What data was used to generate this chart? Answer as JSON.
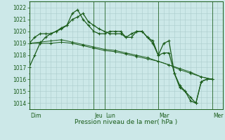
{
  "bg_color": "#cce8e8",
  "grid_color": "#aacccc",
  "line_color": "#1a5c1a",
  "text_color": "#1a5c1a",
  "xlabel": "Pression niveau de la mer( hPa )",
  "ylim": [
    1013.5,
    1022.5
  ],
  "yticks": [
    1014,
    1015,
    1016,
    1017,
    1018,
    1019,
    1020,
    1021,
    1022
  ],
  "xlim": [
    0,
    216
  ],
  "day_positions": [
    0,
    72,
    84,
    144,
    204
  ],
  "day_labels": [
    "Dim",
    "Jeu",
    "Lun",
    "Mar",
    "Mer"
  ],
  "series1_x": [
    0,
    6,
    12,
    18,
    24,
    30,
    36,
    42,
    48,
    54,
    60,
    66,
    72,
    78,
    84,
    90,
    96,
    102,
    108,
    114,
    120,
    126,
    132,
    138,
    144,
    150,
    156,
    162,
    168,
    174,
    180,
    186,
    192,
    198,
    204
  ],
  "series1_y": [
    1017.0,
    1018.0,
    1019.0,
    1019.5,
    1019.8,
    1020.0,
    1020.2,
    1020.5,
    1021.5,
    1021.8,
    1021.0,
    1020.5,
    1020.0,
    1019.8,
    1019.8,
    1020.0,
    1020.0,
    1020.0,
    1019.5,
    1019.5,
    1020.0,
    1020.0,
    1019.5,
    1019.0,
    1018.0,
    1018.2,
    1018.2,
    1016.5,
    1015.3,
    1015.0,
    1014.2,
    1014.0,
    1015.8,
    1016.0,
    1016.0
  ],
  "series2_x": [
    0,
    6,
    12,
    18,
    24,
    30,
    36,
    42,
    48,
    54,
    60,
    66,
    72,
    78,
    84,
    90,
    96,
    102,
    108,
    114,
    120,
    126,
    132,
    138,
    144,
    150,
    156,
    162,
    168,
    174,
    180,
    186,
    192,
    198,
    204
  ],
  "series2_y": [
    1019.0,
    1019.5,
    1019.8,
    1019.8,
    1019.8,
    1020.0,
    1020.3,
    1020.5,
    1021.0,
    1021.2,
    1021.5,
    1020.8,
    1020.5,
    1020.2,
    1020.0,
    1019.8,
    1019.8,
    1019.8,
    1019.5,
    1019.8,
    1020.0,
    1020.0,
    1019.5,
    1019.2,
    1018.0,
    1019.0,
    1019.2,
    1016.5,
    1015.5,
    1015.0,
    1014.5,
    1014.0,
    1015.8,
    1016.0,
    1016.0
  ],
  "series3_x": [
    0,
    12,
    24,
    36,
    48,
    60,
    72,
    84,
    96,
    108,
    120,
    132,
    144,
    156,
    168,
    180,
    192,
    204
  ],
  "series3_y": [
    1019.0,
    1019.0,
    1019.0,
    1019.1,
    1019.0,
    1018.8,
    1018.6,
    1018.4,
    1018.3,
    1018.1,
    1017.9,
    1017.7,
    1017.5,
    1017.2,
    1016.8,
    1016.5,
    1016.2,
    1016.0
  ],
  "series4_x": [
    0,
    12,
    24,
    36,
    48,
    60,
    72,
    84,
    96,
    108,
    120,
    132,
    144,
    156,
    168,
    180,
    192,
    204
  ],
  "series4_y": [
    1019.0,
    1019.1,
    1019.2,
    1019.3,
    1019.1,
    1018.9,
    1018.7,
    1018.5,
    1018.4,
    1018.2,
    1018.0,
    1017.8,
    1017.5,
    1017.2,
    1016.9,
    1016.6,
    1016.2,
    1016.0
  ]
}
